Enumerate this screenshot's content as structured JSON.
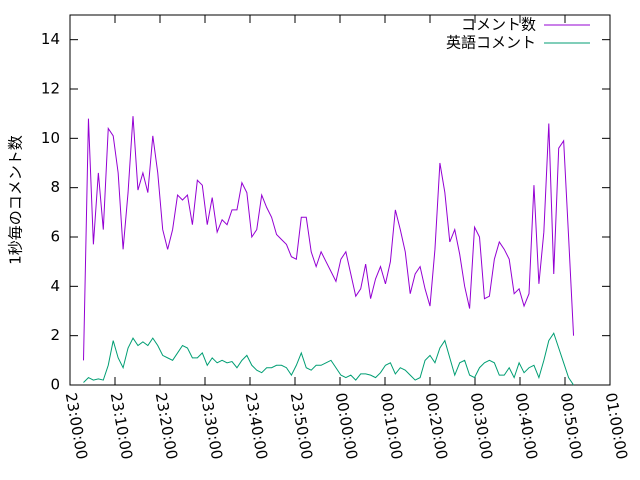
{
  "chart_data": {
    "type": "line",
    "ylabel": "1秒毎のコメント数",
    "x": [
      "23:03:00",
      "23:04:06",
      "23:05:12",
      "23:06:18",
      "23:07:24",
      "23:08:30",
      "23:09:36",
      "23:10:42",
      "23:11:48",
      "23:12:54",
      "23:14:00",
      "23:15:06",
      "23:16:12",
      "23:17:18",
      "23:18:24",
      "23:19:30",
      "23:20:36",
      "23:21:42",
      "23:22:48",
      "23:23:54",
      "23:25:00",
      "23:26:06",
      "23:27:12",
      "23:28:18",
      "23:29:24",
      "23:30:30",
      "23:31:36",
      "23:32:42",
      "23:33:48",
      "23:34:54",
      "23:36:00",
      "23:37:06",
      "23:38:12",
      "23:39:18",
      "23:40:24",
      "23:41:30",
      "23:42:36",
      "23:43:42",
      "23:44:48",
      "23:45:54",
      "23:47:00",
      "23:48:06",
      "23:49:12",
      "23:50:18",
      "23:51:24",
      "23:52:30",
      "23:53:36",
      "23:54:42",
      "23:55:48",
      "23:56:54",
      "23:58:00",
      "23:59:06",
      "00:00:12",
      "00:01:18",
      "00:02:24",
      "00:03:30",
      "00:04:36",
      "00:05:42",
      "00:06:48",
      "00:07:54",
      "00:09:00",
      "00:10:06",
      "00:11:12",
      "00:12:18",
      "00:13:24",
      "00:14:30",
      "00:15:36",
      "00:16:42",
      "00:17:48",
      "00:18:54",
      "00:20:00",
      "00:21:06",
      "00:22:12",
      "00:23:18",
      "00:24:24",
      "00:25:30",
      "00:26:36",
      "00:27:42",
      "00:28:48",
      "00:29:54",
      "00:31:00",
      "00:32:06",
      "00:33:12",
      "00:34:18",
      "00:35:24",
      "00:36:30",
      "00:37:36",
      "00:38:42",
      "00:39:48",
      "00:40:54",
      "00:42:00",
      "00:43:06",
      "00:44:12",
      "00:45:18",
      "00:46:24",
      "00:47:30",
      "00:48:36",
      "00:49:42",
      "00:50:48",
      "00:51:54"
    ],
    "series": [
      {
        "name": "コメント数",
        "color": "#9400d3",
        "values": [
          1.0,
          10.8,
          5.7,
          8.6,
          6.3,
          10.4,
          10.1,
          8.6,
          5.5,
          7.8,
          10.9,
          7.9,
          8.6,
          7.8,
          10.1,
          8.6,
          6.3,
          5.5,
          6.3,
          7.7,
          7.5,
          7.7,
          6.5,
          8.3,
          8.1,
          6.5,
          7.6,
          6.2,
          6.7,
          6.5,
          7.1,
          7.1,
          8.2,
          7.8,
          6.0,
          6.3,
          7.7,
          7.2,
          6.8,
          6.1,
          5.9,
          5.7,
          5.2,
          5.1,
          6.8,
          6.8,
          5.4,
          4.8,
          5.4,
          5.0,
          4.6,
          4.2,
          5.1,
          5.4,
          4.5,
          3.6,
          3.9,
          4.9,
          3.5,
          4.3,
          4.8,
          4.1,
          5.0,
          7.1,
          6.3,
          5.4,
          3.7,
          4.5,
          4.8,
          3.9,
          3.2,
          5.5,
          9.0,
          7.8,
          5.8,
          6.3,
          5.3,
          4.0,
          3.1,
          6.4,
          6.0,
          3.5,
          3.6,
          5.1,
          5.8,
          5.5,
          5.1,
          3.7,
          3.9,
          3.2,
          3.7,
          8.1,
          4.1,
          6.2,
          10.6,
          4.5,
          9.6,
          9.9,
          6.0,
          2.0
        ]
      },
      {
        "name": "英語コメント",
        "color": "#009e73",
        "values": [
          0.1,
          0.3,
          0.2,
          0.25,
          0.2,
          0.8,
          1.8,
          1.1,
          0.7,
          1.5,
          1.9,
          1.6,
          1.75,
          1.6,
          1.9,
          1.6,
          1.2,
          1.1,
          1.0,
          1.3,
          1.6,
          1.5,
          1.1,
          1.1,
          1.3,
          0.8,
          1.1,
          0.9,
          1.0,
          0.9,
          0.95,
          0.7,
          1.0,
          1.2,
          0.8,
          0.6,
          0.5,
          0.7,
          0.7,
          0.8,
          0.8,
          0.7,
          0.4,
          0.8,
          1.3,
          0.7,
          0.6,
          0.8,
          0.8,
          0.9,
          1.0,
          0.7,
          0.4,
          0.3,
          0.4,
          0.2,
          0.45,
          0.45,
          0.4,
          0.3,
          0.5,
          0.8,
          0.9,
          0.45,
          0.7,
          0.6,
          0.4,
          0.2,
          0.3,
          1.0,
          1.2,
          0.9,
          1.5,
          1.8,
          1.1,
          0.4,
          0.9,
          1.0,
          0.4,
          0.3,
          0.7,
          0.9,
          1.0,
          0.9,
          0.4,
          0.4,
          0.7,
          0.3,
          0.9,
          0.5,
          0.7,
          0.8,
          0.3,
          1.0,
          1.8,
          2.1,
          1.5,
          0.9,
          0.3,
          0.0
        ]
      }
    ],
    "xlim": [
      "23:00:00",
      "01:00:00"
    ],
    "xticks": [
      "23:00:00",
      "23:10:00",
      "23:20:00",
      "23:30:00",
      "23:40:00",
      "23:50:00",
      "00:00:00",
      "00:10:00",
      "00:20:00",
      "00:30:00",
      "00:40:00",
      "00:50:00",
      "01:00:00"
    ],
    "ylim": [
      0,
      15
    ],
    "yticks": [
      0,
      2,
      4,
      6,
      8,
      10,
      12,
      14
    ],
    "legend": "top-right"
  }
}
